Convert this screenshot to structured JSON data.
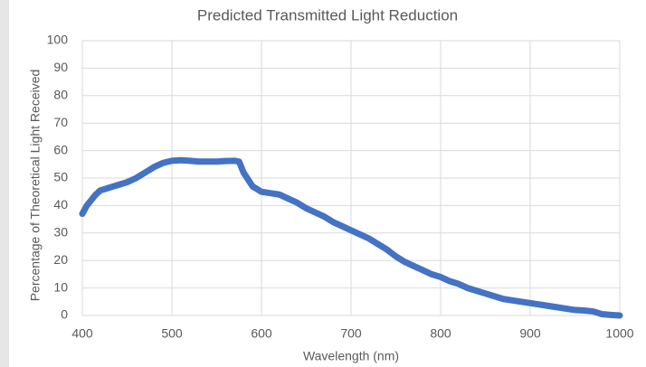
{
  "chart_data": {
    "type": "line",
    "title": "Predicted Transmitted Light Reduction",
    "x_label": "Wavelength (nm)",
    "y_label": "Percentage of Theoretical Light Received",
    "x": [
      400,
      405,
      410,
      415,
      420,
      425,
      430,
      440,
      450,
      460,
      470,
      480,
      490,
      500,
      510,
      520,
      530,
      540,
      550,
      560,
      570,
      575,
      580,
      590,
      600,
      610,
      620,
      630,
      640,
      650,
      660,
      670,
      680,
      690,
      700,
      710,
      720,
      730,
      740,
      750,
      760,
      770,
      780,
      790,
      800,
      810,
      820,
      830,
      840,
      850,
      860,
      870,
      880,
      890,
      900,
      910,
      920,
      930,
      940,
      950,
      960,
      970,
      975,
      980,
      990,
      1000
    ],
    "series": [
      {
        "name": "Percentage of Theoretical Light Received",
        "color": "#4472c4",
        "values": [
          37,
          40,
          42,
          44,
          45.5,
          46,
          46.5,
          47.5,
          48.5,
          50,
          52,
          54,
          55.5,
          56.3,
          56.5,
          56.3,
          56,
          56,
          56,
          56.2,
          56.3,
          56,
          52,
          47,
          45,
          44.5,
          44,
          42.5,
          41,
          39,
          37.5,
          36,
          34,
          32.5,
          31,
          29.5,
          28,
          26,
          24,
          21.5,
          19.5,
          18,
          16.5,
          15,
          14,
          12.5,
          11.5,
          10,
          9,
          8,
          7,
          6,
          5.5,
          5,
          4.5,
          4,
          3.5,
          3,
          2.5,
          2,
          1.8,
          1.5,
          1,
          0.5,
          0.2,
          0
        ]
      }
    ],
    "xlim": [
      400,
      1000
    ],
    "xticks": [
      400,
      500,
      600,
      700,
      800,
      900,
      1000
    ],
    "ylim": [
      0,
      100
    ],
    "yticks": [
      0,
      10,
      20,
      30,
      40,
      50,
      60,
      70,
      80,
      90,
      100
    ],
    "grid": true
  }
}
